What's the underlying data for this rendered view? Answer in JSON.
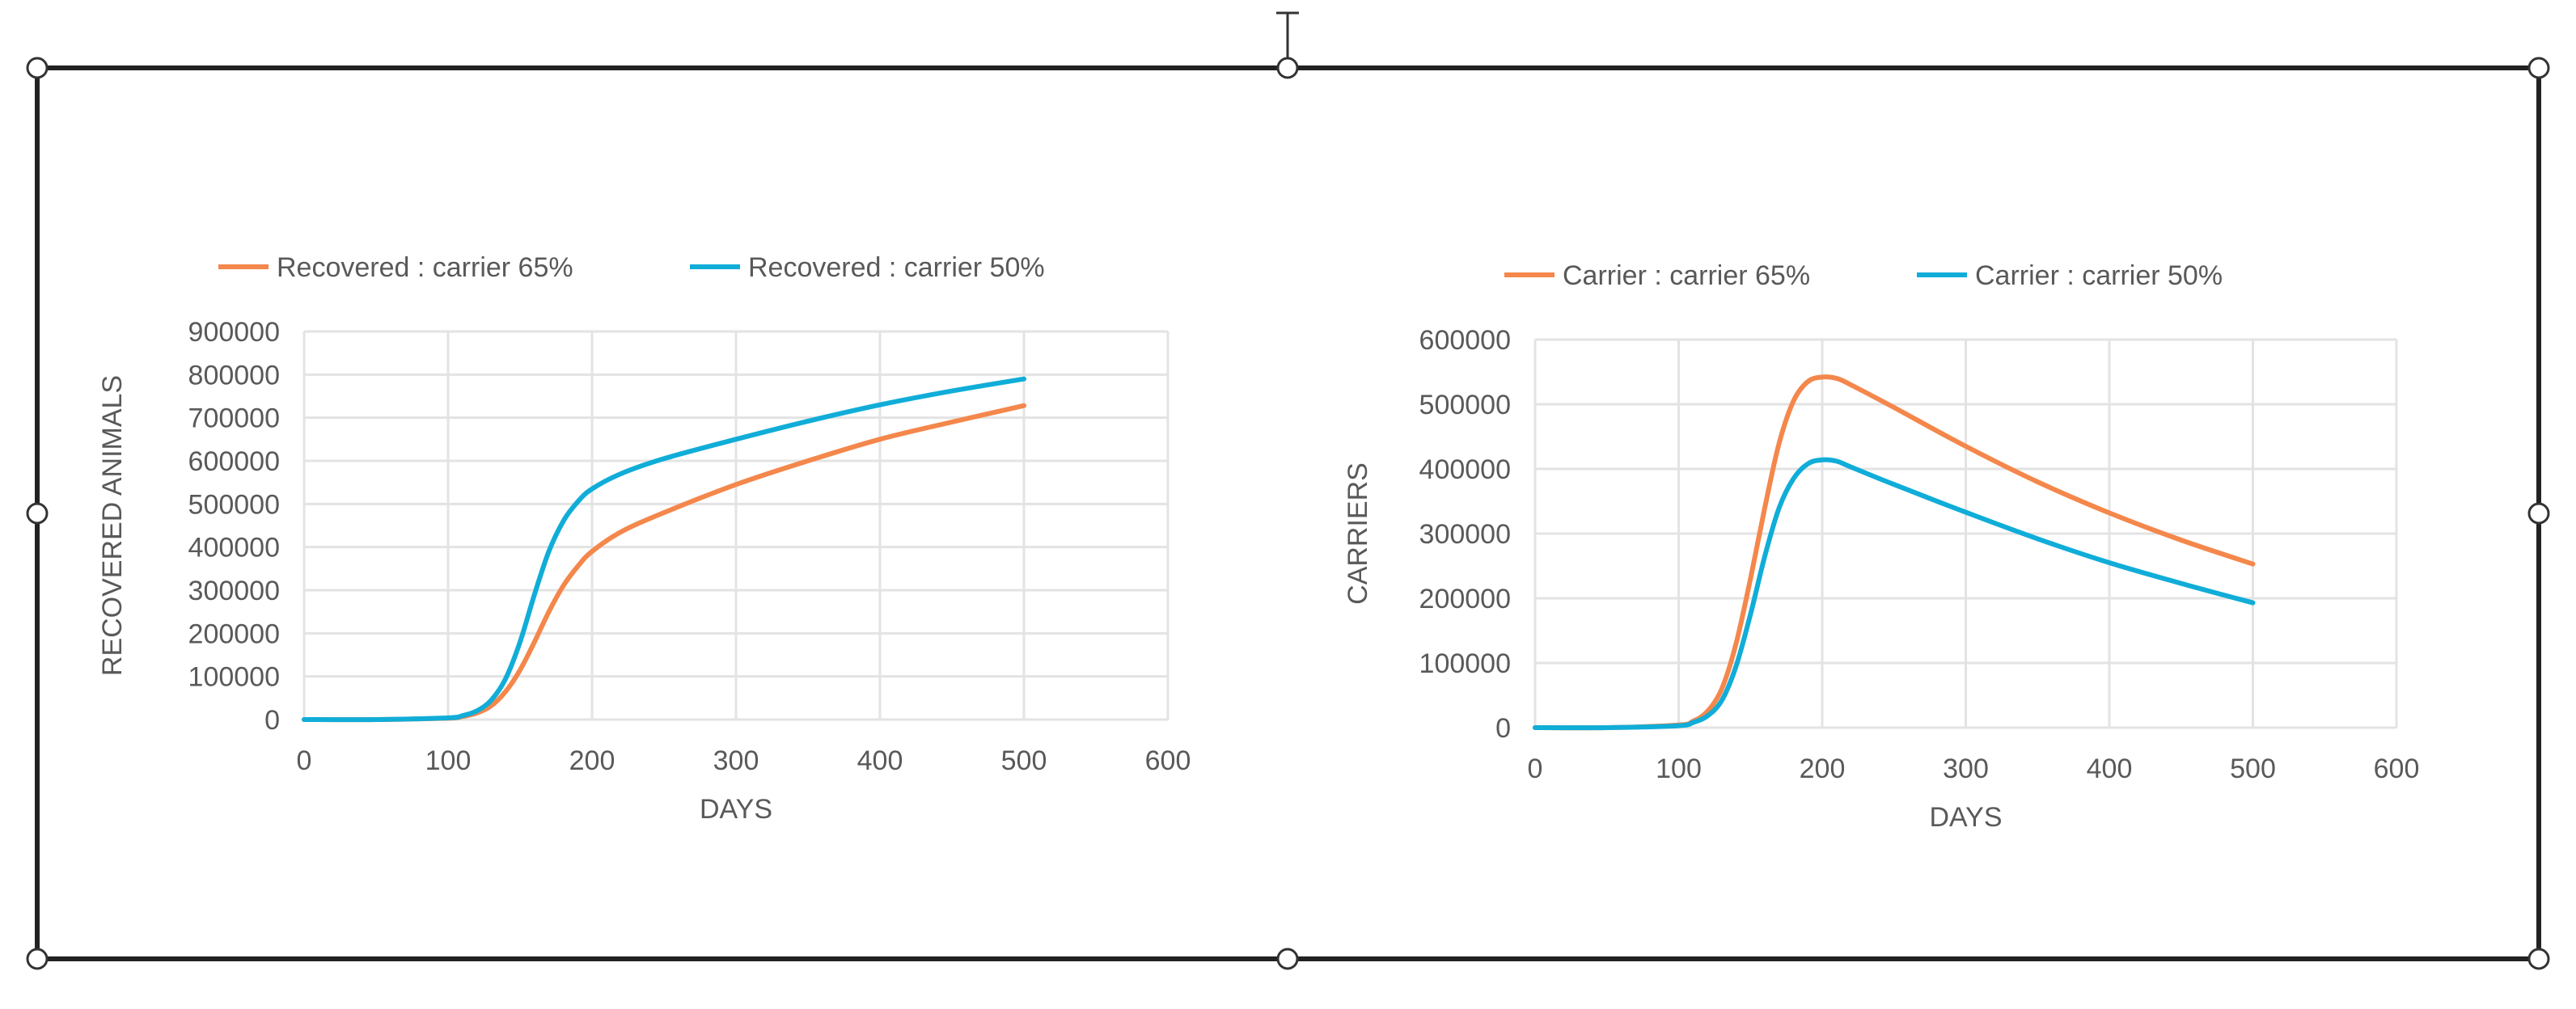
{
  "chart_data": [
    {
      "type": "line",
      "title": "",
      "xlabel": "DAYS",
      "ylabel": "RECOVERED ANIMALS",
      "xlim": [
        0,
        600
      ],
      "ylim": [
        0,
        900000
      ],
      "x_ticks": [
        0,
        100,
        200,
        300,
        400,
        500,
        600
      ],
      "y_ticks": [
        0,
        100000,
        200000,
        300000,
        400000,
        500000,
        600000,
        700000,
        800000,
        900000
      ],
      "grid": true,
      "legend_position": "top",
      "x": [
        0,
        50,
        100,
        110,
        120,
        130,
        140,
        150,
        160,
        170,
        180,
        190,
        200,
        220,
        250,
        300,
        350,
        400,
        450,
        500
      ],
      "series": [
        {
          "name": "Recovered : carrier 65%",
          "color": "#F4874B",
          "values": [
            0,
            0,
            3000,
            7000,
            15000,
            32000,
            65000,
            115000,
            180000,
            250000,
            310000,
            355000,
            390000,
            435000,
            480000,
            545000,
            600000,
            650000,
            690000,
            728000
          ]
        },
        {
          "name": "Recovered : carrier 50%",
          "color": "#10ADD8",
          "values": [
            0,
            0,
            4000,
            9000,
            20000,
            45000,
            95000,
            180000,
            290000,
            390000,
            460000,
            505000,
            535000,
            570000,
            605000,
            650000,
            692000,
            730000,
            762000,
            790000
          ]
        }
      ]
    },
    {
      "type": "line",
      "title": "",
      "xlabel": "DAYS",
      "ylabel": "CARRIERS",
      "xlim": [
        0,
        600
      ],
      "ylim": [
        0,
        600000
      ],
      "x_ticks": [
        0,
        100,
        200,
        300,
        400,
        500,
        600
      ],
      "y_ticks": [
        0,
        100000,
        200000,
        300000,
        400000,
        500000,
        600000
      ],
      "grid": true,
      "legend_position": "top",
      "x": [
        0,
        50,
        100,
        110,
        120,
        130,
        140,
        150,
        160,
        170,
        180,
        190,
        200,
        210,
        220,
        250,
        300,
        350,
        400,
        450,
        500
      ],
      "series": [
        {
          "name": "Carrier : carrier 65%",
          "color": "#F4874B",
          "values": [
            0,
            0,
            4000,
            10000,
            25000,
            60000,
            130000,
            230000,
            340000,
            440000,
            505000,
            535000,
            542000,
            540000,
            530000,
            495000,
            435000,
            380000,
            332000,
            290000,
            253000
          ]
        },
        {
          "name": "Carrier : carrier 50%",
          "color": "#10ADD8",
          "values": [
            0,
            0,
            3000,
            8000,
            18000,
            42000,
            95000,
            175000,
            265000,
            340000,
            385000,
            408000,
            414000,
            412000,
            403000,
            376000,
            333000,
            292000,
            255000,
            223000,
            193000
          ]
        }
      ]
    }
  ]
}
